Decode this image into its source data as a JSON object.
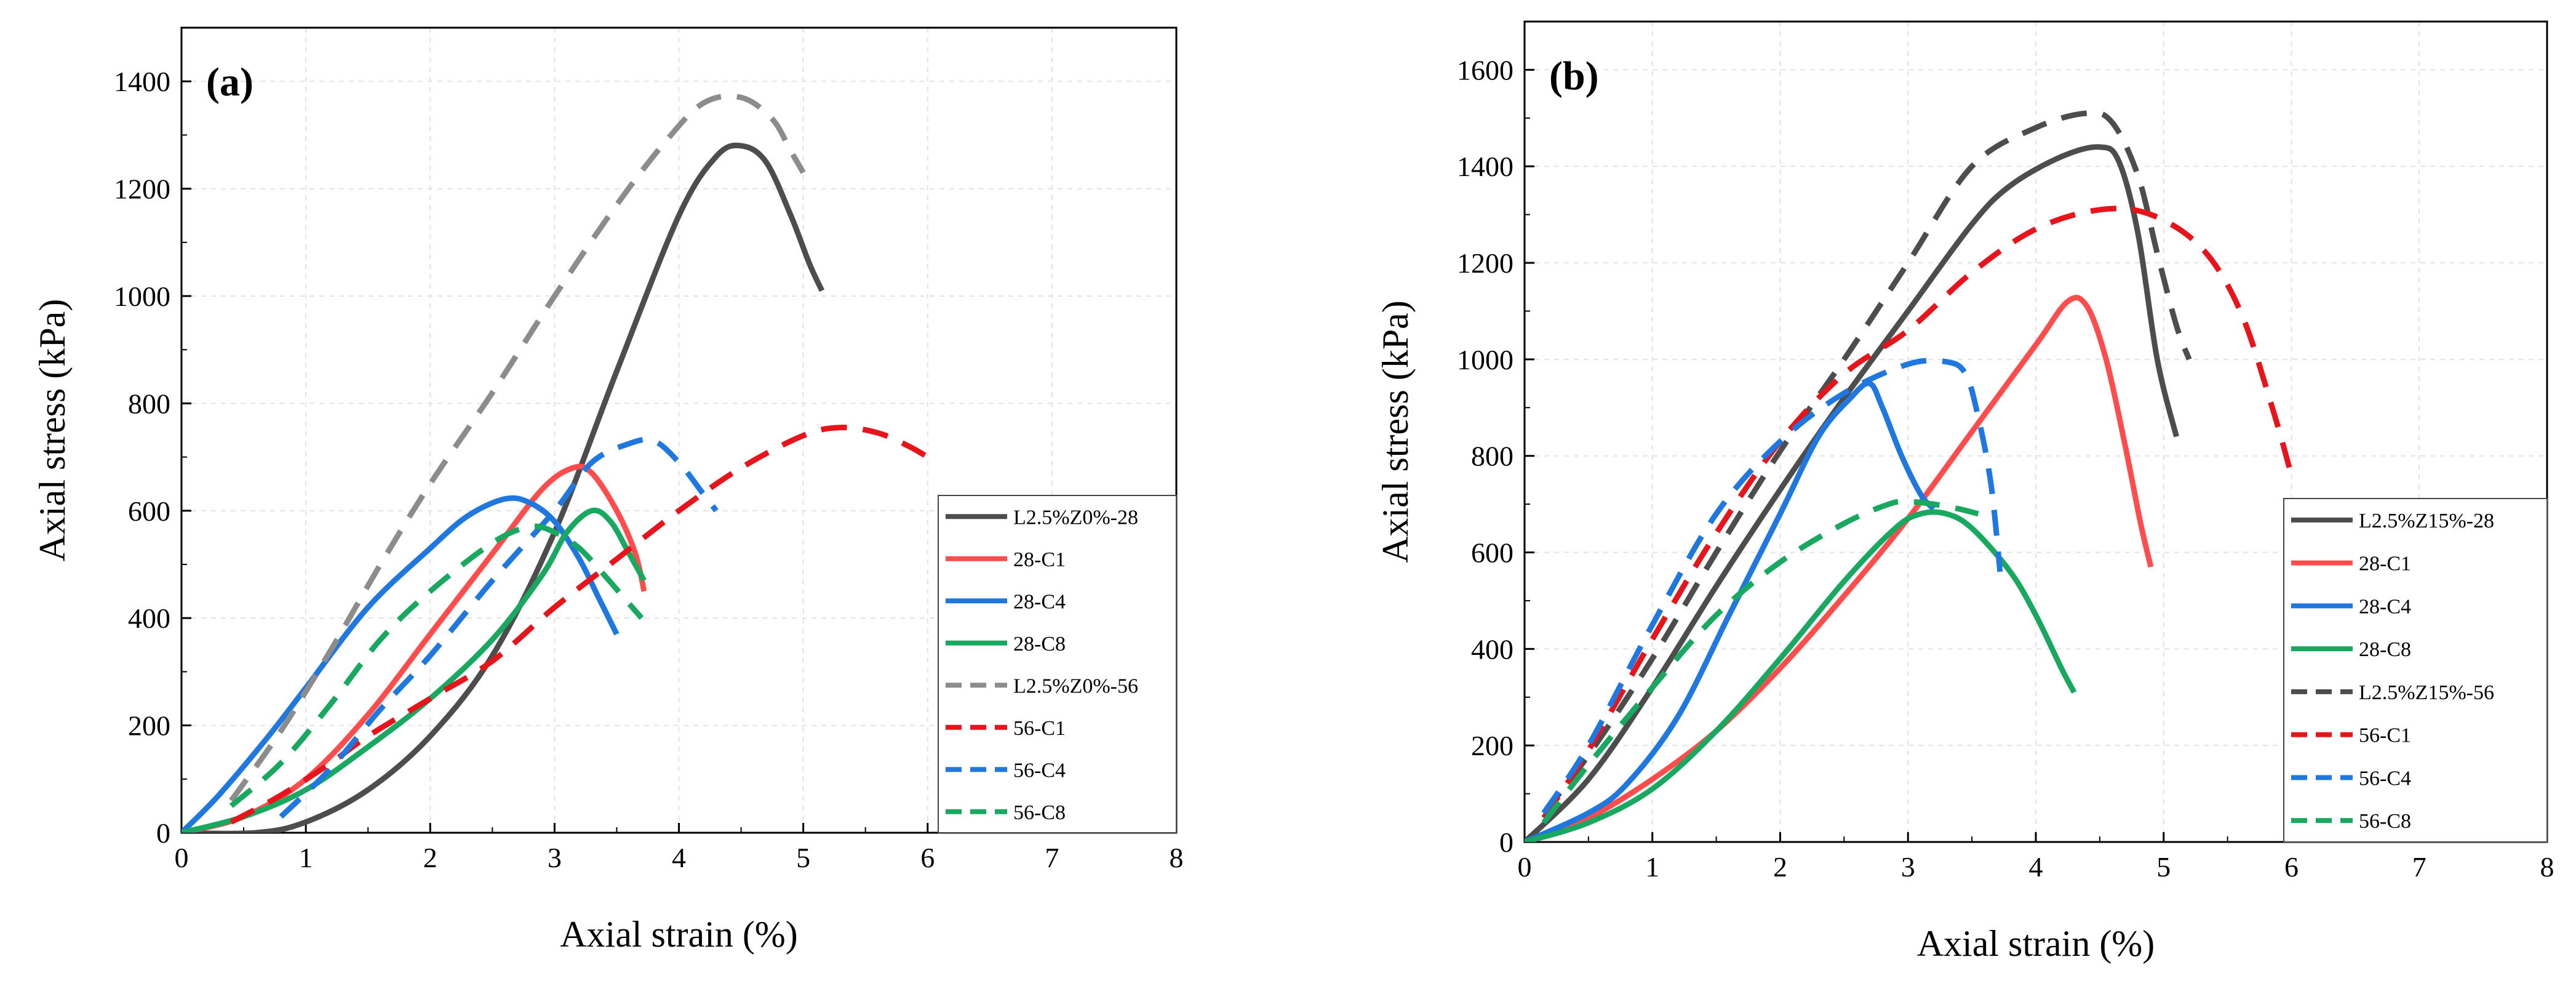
{
  "chart_data": [
    {
      "type": "line",
      "panel_label": "(a)",
      "xlabel": "Axial strain (%)",
      "ylabel": "Axial stress (kPa)",
      "xlim": [
        0,
        8
      ],
      "ylim": [
        0,
        1500
      ],
      "x_ticks": [
        "0",
        "1",
        "2",
        "3",
        "4",
        "5",
        "6",
        "7",
        "8"
      ],
      "y_ticks": [
        "0",
        "200",
        "400",
        "600",
        "800",
        "1000",
        "1200",
        "1400"
      ],
      "legend_position": "bottom-right",
      "series": [
        {
          "name": "L2.5%Z0%-28",
          "color": "#4d4d4d",
          "dash": false,
          "points": [
            [
              0,
              0
            ],
            [
              0.6,
              0
            ],
            [
              1.0,
              20
            ],
            [
              1.5,
              80
            ],
            [
              2.0,
              180
            ],
            [
              2.5,
              330
            ],
            [
              3.0,
              560
            ],
            [
              3.5,
              860
            ],
            [
              4.0,
              1150
            ],
            [
              4.3,
              1260
            ],
            [
              4.5,
              1280
            ],
            [
              4.7,
              1250
            ],
            [
              4.9,
              1150
            ],
            [
              5.05,
              1060
            ],
            [
              5.15,
              1010
            ]
          ]
        },
        {
          "name": "28-C1",
          "color": "#ff4d4d",
          "dash": false,
          "points": [
            [
              0,
              0
            ],
            [
              0.5,
              30
            ],
            [
              1.0,
              100
            ],
            [
              1.5,
              220
            ],
            [
              2.0,
              370
            ],
            [
              2.5,
              520
            ],
            [
              2.9,
              640
            ],
            [
              3.15,
              680
            ],
            [
              3.3,
              670
            ],
            [
              3.5,
              600
            ],
            [
              3.65,
              520
            ],
            [
              3.72,
              450
            ]
          ]
        },
        {
          "name": "28-C4",
          "color": "#1f77e0",
          "dash": false,
          "points": [
            [
              0,
              0
            ],
            [
              0.3,
              70
            ],
            [
              0.7,
              180
            ],
            [
              1.0,
              270
            ],
            [
              1.5,
              420
            ],
            [
              2.0,
              530
            ],
            [
              2.3,
              590
            ],
            [
              2.6,
              622
            ],
            [
              2.8,
              615
            ],
            [
              3.0,
              580
            ],
            [
              3.2,
              510
            ],
            [
              3.35,
              440
            ],
            [
              3.5,
              370
            ]
          ]
        },
        {
          "name": "28-C8",
          "color": "#18a860",
          "dash": false,
          "points": [
            [
              0,
              0
            ],
            [
              0.5,
              30
            ],
            [
              1.0,
              80
            ],
            [
              1.5,
              160
            ],
            [
              2.0,
              250
            ],
            [
              2.5,
              360
            ],
            [
              2.9,
              480
            ],
            [
              3.1,
              560
            ],
            [
              3.3,
              600
            ],
            [
              3.45,
              580
            ],
            [
              3.6,
              520
            ],
            [
              3.72,
              470
            ]
          ]
        },
        {
          "name": "L2.5%Z0%-56",
          "color": "#8c8c8c",
          "dash": true,
          "points": [
            [
              0.4,
              60
            ],
            [
              0.8,
              190
            ],
            [
              1.2,
              340
            ],
            [
              1.6,
              500
            ],
            [
              2.0,
              650
            ],
            [
              2.5,
              820
            ],
            [
              3.0,
              1000
            ],
            [
              3.5,
              1170
            ],
            [
              3.9,
              1290
            ],
            [
              4.2,
              1360
            ],
            [
              4.5,
              1370
            ],
            [
              4.75,
              1330
            ],
            [
              4.9,
              1270
            ],
            [
              5.0,
              1230
            ]
          ]
        },
        {
          "name": "56-C1",
          "color": "#e8141c",
          "dash": true,
          "points": [
            [
              0.4,
              20
            ],
            [
              0.8,
              70
            ],
            [
              1.2,
              130
            ],
            [
              1.5,
              180
            ],
            [
              2.0,
              250
            ],
            [
              2.5,
              320
            ],
            [
              3.0,
              420
            ],
            [
              3.5,
              510
            ],
            [
              4.0,
              600
            ],
            [
              4.5,
              680
            ],
            [
              5.0,
              740
            ],
            [
              5.3,
              755
            ],
            [
              5.6,
              745
            ],
            [
              5.85,
              720
            ],
            [
              6.0,
              700
            ]
          ]
        },
        {
          "name": "56-C4",
          "color": "#1f77e0",
          "dash": true,
          "points": [
            [
              0.8,
              30
            ],
            [
              1.2,
              120
            ],
            [
              1.6,
              230
            ],
            [
              2.0,
              330
            ],
            [
              2.5,
              470
            ],
            [
              3.0,
              600
            ],
            [
              3.3,
              690
            ],
            [
              3.6,
              725
            ],
            [
              3.8,
              730
            ],
            [
              4.0,
              690
            ],
            [
              4.2,
              630
            ],
            [
              4.3,
              600
            ]
          ]
        },
        {
          "name": "56-C8",
          "color": "#18a860",
          "dash": true,
          "points": [
            [
              0.4,
              50
            ],
            [
              0.8,
              130
            ],
            [
              1.2,
              240
            ],
            [
              1.6,
              360
            ],
            [
              2.0,
              450
            ],
            [
              2.5,
              540
            ],
            [
              2.8,
              570
            ],
            [
              3.0,
              560
            ],
            [
              3.2,
              530
            ],
            [
              3.4,
              480
            ],
            [
              3.55,
              440
            ],
            [
              3.7,
              400
            ]
          ]
        }
      ]
    },
    {
      "type": "line",
      "panel_label": "(b)",
      "xlabel": "Axial strain (%)",
      "ylabel": "Axial stress (kPa)",
      "xlim": [
        0,
        8
      ],
      "ylim": [
        0,
        1700
      ],
      "x_ticks": [
        "0",
        "1",
        "2",
        "3",
        "4",
        "5",
        "6",
        "7",
        "8"
      ],
      "y_ticks": [
        "0",
        "200",
        "400",
        "600",
        "800",
        "1000",
        "1200",
        "1400",
        "1600"
      ],
      "legend_position": "bottom-right",
      "series": [
        {
          "name": "L2.5%Z15%-28",
          "color": "#4d4d4d",
          "dash": false,
          "points": [
            [
              0,
              0
            ],
            [
              0.5,
              130
            ],
            [
              1.0,
              320
            ],
            [
              1.5,
              530
            ],
            [
              2.0,
              730
            ],
            [
              2.5,
              920
            ],
            [
              3.0,
              1100
            ],
            [
              3.5,
              1280
            ],
            [
              3.8,
              1360
            ],
            [
              4.2,
              1420
            ],
            [
              4.5,
              1440
            ],
            [
              4.65,
              1410
            ],
            [
              4.8,
              1260
            ],
            [
              4.95,
              1000
            ],
            [
              5.1,
              840
            ]
          ]
        },
        {
          "name": "28-C1",
          "color": "#ff4d4d",
          "dash": false,
          "points": [
            [
              0,
              0
            ],
            [
              0.5,
              50
            ],
            [
              1.0,
              130
            ],
            [
              1.5,
              230
            ],
            [
              2.0,
              360
            ],
            [
              2.5,
              510
            ],
            [
              3.0,
              670
            ],
            [
              3.5,
              850
            ],
            [
              4.0,
              1030
            ],
            [
              4.25,
              1120
            ],
            [
              4.4,
              1110
            ],
            [
              4.55,
              1000
            ],
            [
              4.7,
              820
            ],
            [
              4.82,
              660
            ],
            [
              4.9,
              570
            ]
          ]
        },
        {
          "name": "28-C4",
          "color": "#1f77e0",
          "dash": false,
          "points": [
            [
              0,
              0
            ],
            [
              0.5,
              60
            ],
            [
              0.8,
              120
            ],
            [
              1.2,
              260
            ],
            [
              1.6,
              470
            ],
            [
              2.0,
              680
            ],
            [
              2.3,
              840
            ],
            [
              2.55,
              920
            ],
            [
              2.7,
              950
            ],
            [
              2.8,
              900
            ],
            [
              2.95,
              800
            ],
            [
              3.1,
              720
            ],
            [
              3.2,
              690
            ]
          ]
        },
        {
          "name": "28-C8",
          "color": "#18a860",
          "dash": false,
          "points": [
            [
              0,
              0
            ],
            [
              0.5,
              40
            ],
            [
              1.0,
              110
            ],
            [
              1.5,
              230
            ],
            [
              2.0,
              380
            ],
            [
              2.5,
              540
            ],
            [
              2.9,
              650
            ],
            [
              3.1,
              680
            ],
            [
              3.3,
              680
            ],
            [
              3.5,
              650
            ],
            [
              3.8,
              560
            ],
            [
              4.0,
              470
            ],
            [
              4.2,
              360
            ],
            [
              4.3,
              310
            ]
          ]
        },
        {
          "name": "L2.5%Z15%-56",
          "color": "#4d4d4d",
          "dash": true,
          "points": [
            [
              0.15,
              60
            ],
            [
              0.5,
              180
            ],
            [
              1.0,
              380
            ],
            [
              1.5,
              600
            ],
            [
              2.0,
              810
            ],
            [
              2.5,
              1000
            ],
            [
              3.0,
              1200
            ],
            [
              3.5,
              1400
            ],
            [
              4.0,
              1480
            ],
            [
              4.4,
              1510
            ],
            [
              4.6,
              1490
            ],
            [
              4.8,
              1380
            ],
            [
              4.95,
              1220
            ],
            [
              5.1,
              1070
            ],
            [
              5.2,
              1000
            ]
          ]
        },
        {
          "name": "56-C1",
          "color": "#e8141c",
          "dash": true,
          "points": [
            [
              0.15,
              50
            ],
            [
              0.5,
              190
            ],
            [
              1.0,
              420
            ],
            [
              1.5,
              640
            ],
            [
              2.0,
              830
            ],
            [
              2.5,
              970
            ],
            [
              3.0,
              1060
            ],
            [
              3.5,
              1180
            ],
            [
              4.0,
              1270
            ],
            [
              4.5,
              1310
            ],
            [
              4.9,
              1300
            ],
            [
              5.3,
              1230
            ],
            [
              5.6,
              1100
            ],
            [
              5.85,
              900
            ],
            [
              6.0,
              760
            ]
          ]
        },
        {
          "name": "56-C4",
          "color": "#1f77e0",
          "dash": true,
          "points": [
            [
              0.15,
              60
            ],
            [
              0.5,
              200
            ],
            [
              1.0,
              450
            ],
            [
              1.5,
              680
            ],
            [
              2.0,
              830
            ],
            [
              2.5,
              930
            ],
            [
              3.0,
              990
            ],
            [
              3.3,
              995
            ],
            [
              3.45,
              970
            ],
            [
              3.55,
              880
            ],
            [
              3.65,
              740
            ],
            [
              3.72,
              560
            ]
          ]
        },
        {
          "name": "56-C8",
          "color": "#18a860",
          "dash": true,
          "points": [
            [
              0.15,
              40
            ],
            [
              0.5,
              160
            ],
            [
              1.0,
              320
            ],
            [
              1.5,
              470
            ],
            [
              2.0,
              580
            ],
            [
              2.5,
              660
            ],
            [
              2.85,
              700
            ],
            [
              3.0,
              705
            ],
            [
              3.2,
              700
            ],
            [
              3.4,
              690
            ],
            [
              3.55,
              680
            ]
          ]
        }
      ]
    }
  ]
}
